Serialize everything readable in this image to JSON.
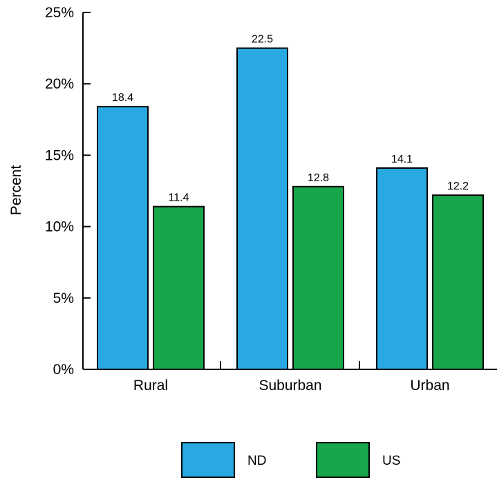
{
  "chart_data": {
    "type": "bar",
    "title": "",
    "xlabel": "",
    "ylabel": "Percent",
    "categories": [
      "Rural",
      "Suburban",
      "Urban"
    ],
    "series": [
      {
        "name": "ND",
        "values": [
          18.4,
          22.5,
          14.1
        ],
        "labels": [
          "18.4",
          "22.5",
          "14.1"
        ],
        "color": "#29a9e1"
      },
      {
        "name": "US",
        "values": [
          11.4,
          12.8,
          12.2
        ],
        "labels": [
          "11.4",
          "12.8",
          "12.2"
        ],
        "color": "#18a64a"
      }
    ],
    "ylim": [
      0,
      25
    ],
    "yticks": [
      0,
      5,
      10,
      15,
      20,
      25
    ],
    "ytick_labels": [
      "0%",
      "5%",
      "10%",
      "15%",
      "20%",
      "25%"
    ],
    "grid": false,
    "legend_position": "bottom-center"
  }
}
